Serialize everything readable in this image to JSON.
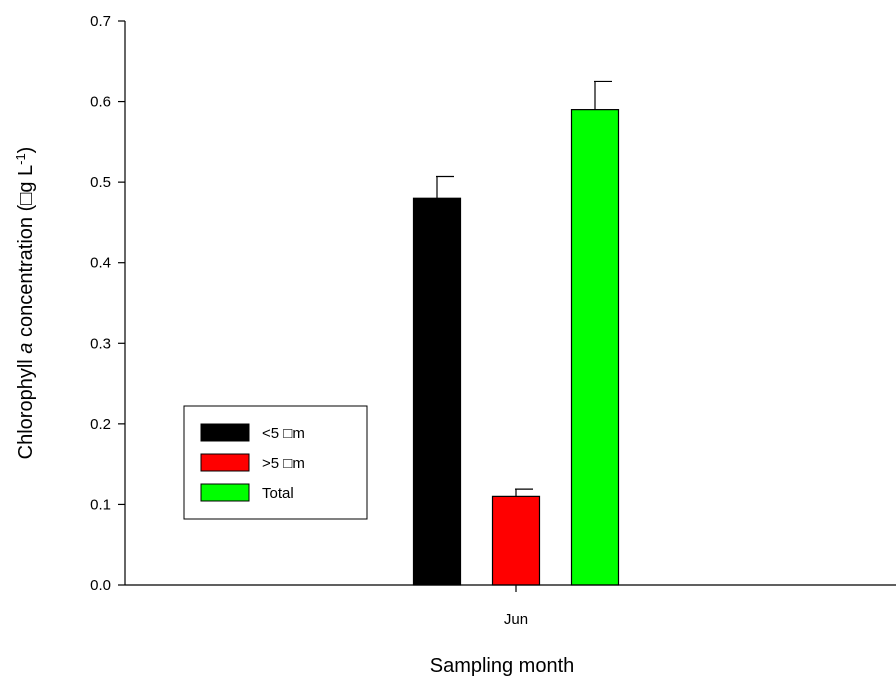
{
  "chart_data": {
    "type": "bar",
    "categories": [
      "Jun"
    ],
    "series": [
      {
        "name": "<5 □m",
        "values": [
          0.48
        ],
        "error": [
          0.027
        ],
        "color": "#000000"
      },
      {
        "name": ">5 □m",
        "values": [
          0.11
        ],
        "error": [
          0.009
        ],
        "color": "#ff0000"
      },
      {
        "name": "Total",
        "values": [
          0.59
        ],
        "error": [
          0.035
        ],
        "color": "#00ff00"
      }
    ],
    "title": "",
    "xlabel": "Sampling month",
    "ylabel_prefix": "Chlorophyll ",
    "ylabel_italic": "a",
    "ylabel_mid": " concentration (□g L",
    "ylabel_sup": "-1",
    "ylabel_suffix": ")",
    "ylim": [
      0,
      0.7
    ],
    "yticks": [
      "0.0",
      "0.1",
      "0.2",
      "0.3",
      "0.4",
      "0.5",
      "0.6",
      "0.7"
    ],
    "grid": false,
    "legend_position": "middle-left"
  }
}
